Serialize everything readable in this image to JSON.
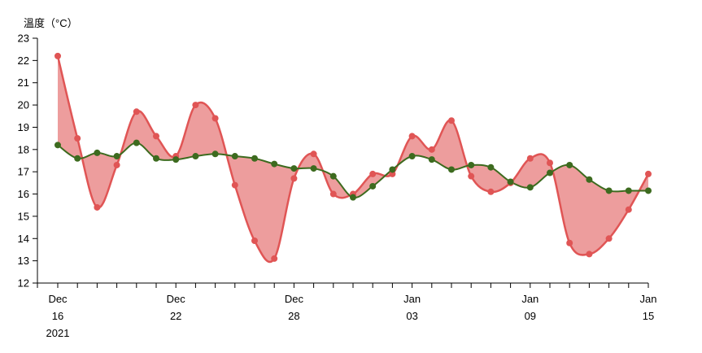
{
  "chart_data": {
    "type": "area",
    "ylabel": "溫度（°C）",
    "ylim": [
      12,
      23
    ],
    "yticks": [
      12,
      13,
      14,
      15,
      16,
      17,
      18,
      19,
      20,
      21,
      22,
      23
    ],
    "x": [
      "2021-12-16",
      "2021-12-17",
      "2021-12-18",
      "2021-12-19",
      "2021-12-20",
      "2021-12-21",
      "2021-12-22",
      "2021-12-23",
      "2021-12-24",
      "2021-12-25",
      "2021-12-26",
      "2021-12-27",
      "2021-12-28",
      "2021-12-29",
      "2021-12-30",
      "2021-12-31",
      "2022-01-01",
      "2022-01-02",
      "2022-01-03",
      "2022-01-04",
      "2022-01-05",
      "2022-01-06",
      "2022-01-07",
      "2022-01-08",
      "2022-01-09",
      "2022-01-10",
      "2022-01-11",
      "2022-01-12",
      "2022-01-13",
      "2022-01-14",
      "2022-01-15"
    ],
    "xtick_labels": [
      {
        "date": "2021-12-16",
        "lines": [
          "Dec",
          "16",
          "2021"
        ]
      },
      {
        "date": "2021-12-22",
        "lines": [
          "Dec",
          "22"
        ]
      },
      {
        "date": "2021-12-28",
        "lines": [
          "Dec",
          "28"
        ]
      },
      {
        "date": "2022-01-03",
        "lines": [
          "Jan",
          "03"
        ]
      },
      {
        "date": "2022-01-09",
        "lines": [
          "Jan",
          "09"
        ]
      },
      {
        "date": "2022-01-15",
        "lines": [
          "Jan",
          "15"
        ]
      }
    ],
    "series": [
      {
        "color": "#e05555",
        "values": [
          22.2,
          18.5,
          15.4,
          17.3,
          19.7,
          18.6,
          17.7,
          20.0,
          19.4,
          16.4,
          13.9,
          13.1,
          16.7,
          17.8,
          16.0,
          16.0,
          16.9,
          16.9,
          18.6,
          18.0,
          19.3,
          16.8,
          16.1,
          16.5,
          17.6,
          17.4,
          13.8,
          13.3,
          14.0,
          15.3,
          16.9
        ]
      },
      {
        "color": "#3d6b1f",
        "values": [
          18.2,
          17.6,
          17.85,
          17.7,
          18.3,
          17.6,
          17.55,
          17.7,
          17.8,
          17.7,
          17.6,
          17.35,
          17.15,
          17.15,
          16.8,
          15.85,
          16.35,
          17.1,
          17.7,
          17.55,
          17.1,
          17.3,
          17.2,
          16.55,
          16.3,
          16.95,
          17.3,
          16.65,
          16.15,
          16.15,
          16.15
        ]
      }
    ],
    "grid": false,
    "legend": "none"
  }
}
